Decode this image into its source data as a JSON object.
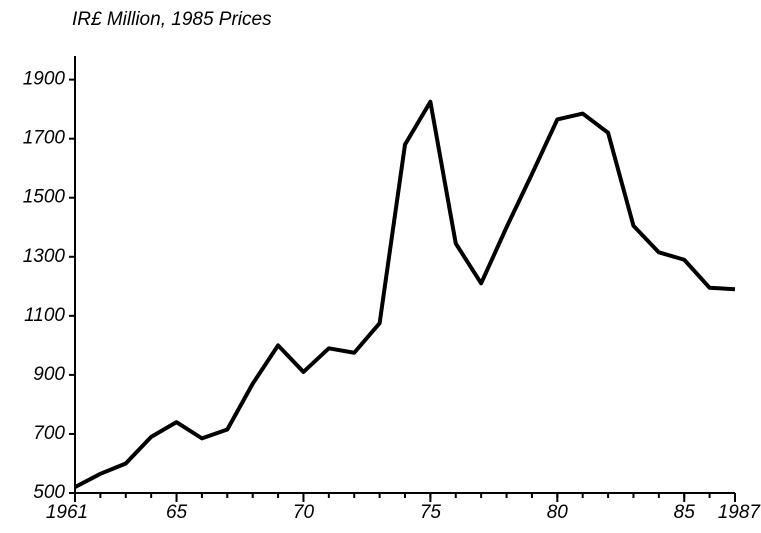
{
  "chart_data": {
    "type": "line",
    "title": "IR£ Million, 1985 Prices",
    "x": [
      1961,
      1962,
      1963,
      1964,
      1965,
      1966,
      1967,
      1968,
      1969,
      1970,
      1971,
      1972,
      1973,
      1974,
      1975,
      1976,
      1977,
      1978,
      1979,
      1980,
      1981,
      1982,
      1983,
      1984,
      1985,
      1986,
      1987
    ],
    "series": [
      {
        "color": "#000000",
        "values": [
          520,
          565,
          600,
          690,
          740,
          685,
          715,
          870,
          1000,
          910,
          990,
          975,
          1075,
          1680,
          1825,
          1345,
          1210,
          1400,
          1580,
          1765,
          1785,
          1720,
          1405,
          1315,
          1290,
          1195,
          1190
        ]
      }
    ],
    "xlim": [
      1961,
      1987
    ],
    "xticks": [
      1961,
      {
        "value": 1965,
        "label": "65"
      },
      {
        "value": 1970,
        "label": "70"
      },
      {
        "value": 1975,
        "label": "75"
      },
      {
        "value": 1980,
        "label": "80"
      },
      {
        "value": 1985,
        "label": "85"
      },
      1987
    ],
    "ylim": [
      500,
      1980
    ],
    "yticks": [
      500,
      700,
      900,
      1100,
      1300,
      1500,
      1700,
      1900
    ]
  }
}
